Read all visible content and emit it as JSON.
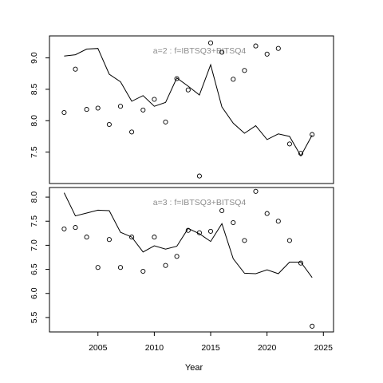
{
  "chart_data": [
    {
      "type": "line",
      "annotation": "a=2  :  f=IBTSQ3+BITSQ4",
      "xlim": [
        2000.7,
        2025.9
      ],
      "ylim": [
        7.0,
        9.35
      ],
      "yticks": [
        7.5,
        8.0,
        8.5,
        9.0
      ],
      "ytick_labels": [
        "7.5",
        "8.0",
        "8.5",
        "9.0"
      ],
      "series": [
        {
          "kind": "line",
          "x": [
            2002,
            2003,
            2004,
            2005,
            2006,
            2007,
            2008,
            2009,
            2010,
            2011,
            2012,
            2013,
            2014,
            2015,
            2016,
            2017,
            2018,
            2019,
            2020,
            2021,
            2022,
            2023,
            2024
          ],
          "y": [
            9.03,
            9.05,
            9.14,
            9.15,
            8.74,
            8.62,
            8.31,
            8.4,
            8.23,
            8.29,
            8.68,
            8.55,
            8.41,
            8.89,
            8.22,
            7.96,
            7.8,
            7.92,
            7.7,
            7.79,
            7.75,
            7.44,
            7.77
          ]
        },
        {
          "kind": "points",
          "x": [
            2002,
            2003,
            2004,
            2005,
            2006,
            2007,
            2008,
            2009,
            2010,
            2011,
            2012,
            2013,
            2014,
            2015,
            2016,
            2017,
            2018,
            2019,
            2020,
            2021,
            2022,
            2023,
            2024
          ],
          "y": [
            8.13,
            8.82,
            8.18,
            8.2,
            7.94,
            8.23,
            7.82,
            8.17,
            8.34,
            7.98,
            8.67,
            8.49,
            7.12,
            9.24,
            9.09,
            8.66,
            8.8,
            9.19,
            9.06,
            9.15,
            7.63,
            7.48,
            7.78
          ]
        }
      ]
    },
    {
      "type": "line",
      "annotation": "a=3  :  f=IBTSQ3+BITSQ4",
      "xlim": [
        2000.7,
        2025.9
      ],
      "ylim": [
        5.2,
        8.2
      ],
      "yticks": [
        5.5,
        6.0,
        6.5,
        7.0,
        7.5,
        8.0
      ],
      "ytick_labels": [
        "5.5",
        "6.0",
        "6.5",
        "7.0",
        "7.5",
        "8.0"
      ],
      "series": [
        {
          "kind": "line",
          "x": [
            2002,
            2003,
            2004,
            2005,
            2006,
            2007,
            2008,
            2009,
            2010,
            2011,
            2012,
            2013,
            2014,
            2015,
            2016,
            2017,
            2018,
            2019,
            2020,
            2021,
            2022,
            2023,
            2024
          ],
          "y": [
            8.09,
            7.61,
            7.67,
            7.73,
            7.72,
            7.27,
            7.17,
            6.86,
            6.99,
            6.92,
            6.98,
            7.35,
            7.24,
            7.08,
            7.45,
            6.72,
            6.42,
            6.41,
            6.49,
            6.41,
            6.65,
            6.65,
            6.33
          ]
        },
        {
          "kind": "points",
          "x": [
            2002,
            2003,
            2004,
            2005,
            2006,
            2007,
            2008,
            2009,
            2010,
            2011,
            2012,
            2013,
            2014,
            2015,
            2016,
            2017,
            2018,
            2019,
            2020,
            2021,
            2022,
            2023,
            2024
          ],
          "y": [
            7.34,
            7.37,
            7.17,
            6.54,
            7.12,
            6.54,
            7.17,
            6.46,
            7.17,
            6.58,
            6.77,
            7.31,
            7.26,
            7.29,
            7.72,
            7.47,
            7.1,
            8.12,
            7.66,
            7.5,
            7.1,
            6.63,
            5.32
          ]
        }
      ]
    }
  ],
  "x_axis": {
    "label": "Year",
    "ticks": [
      2005,
      2010,
      2015,
      2020,
      2025
    ],
    "tick_labels": [
      "2005",
      "2010",
      "2015",
      "2020",
      "2025"
    ]
  }
}
